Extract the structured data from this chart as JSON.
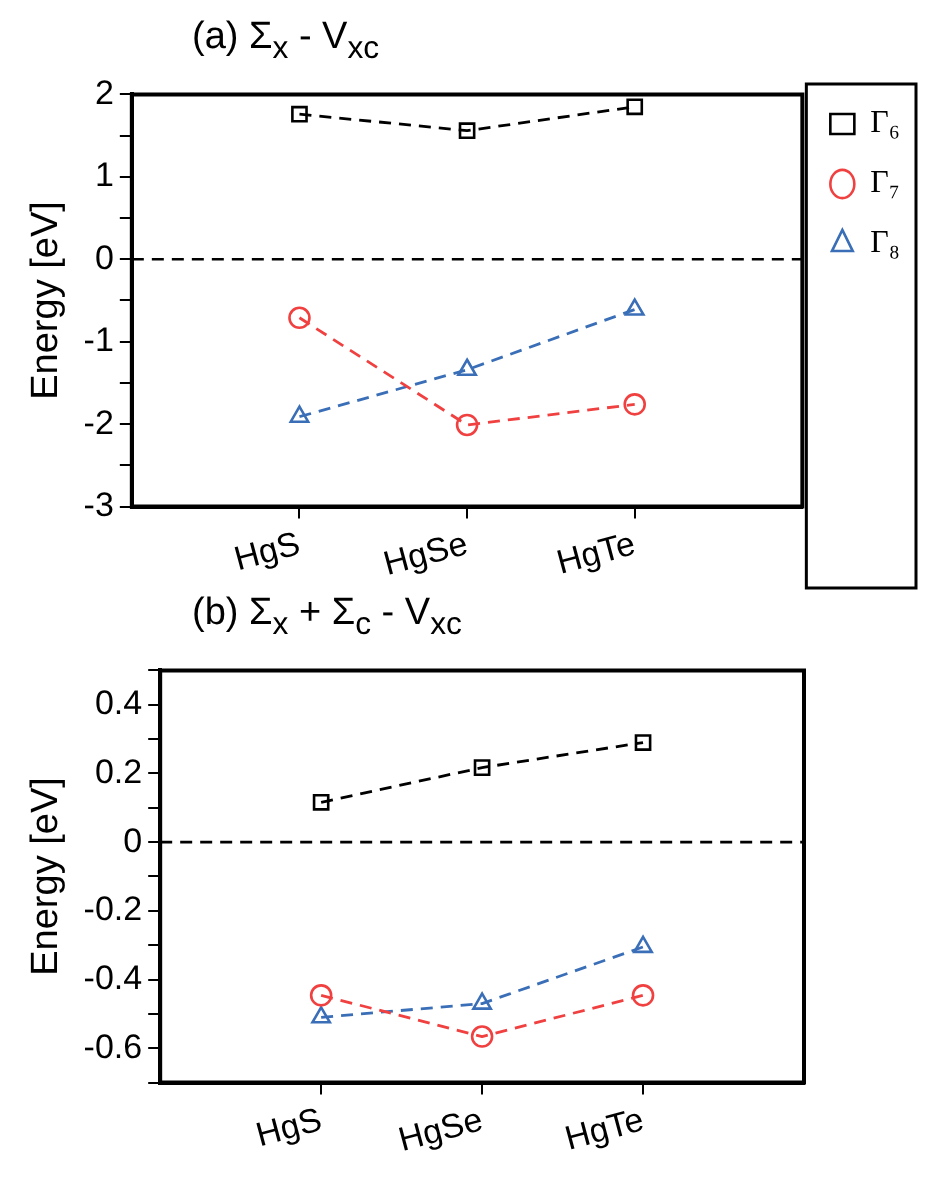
{
  "chart_data": [
    {
      "type": "line",
      "title": "(a) Σ$_{x}$ - V$_{xc}$",
      "ylabel": "Energy [eV]",
      "categories": [
        "HgS",
        "HgSe",
        "HgTe"
      ],
      "series": [
        {
          "name": "Γ₆",
          "color": "#000000",
          "marker": "square",
          "values": [
            1.76,
            1.56,
            1.85
          ]
        },
        {
          "name": "Γ₇",
          "color": "#f04040",
          "marker": "circle",
          "values": [
            -0.71,
            -2.01,
            -1.76
          ]
        },
        {
          "name": "Γ₈",
          "color": "#3a6fb8",
          "marker": "triangle",
          "values": [
            -1.91,
            -1.34,
            -0.61
          ]
        }
      ],
      "ylim": [
        -3,
        2
      ],
      "yticks": [
        -3,
        {
          "value": -2.5,
          "label": null
        },
        -2,
        {
          "value": -1.5,
          "label": null
        },
        -1,
        {
          "value": -0.5,
          "label": null
        },
        0,
        {
          "value": 0.5,
          "label": null
        },
        1,
        {
          "value": 1.5,
          "label": null
        },
        2
      ],
      "ref_lines": [
        {
          "axis": "y",
          "value": 0,
          "color": "#000000",
          "line_style": "dashed"
        }
      ],
      "line_style": "dashed",
      "grid": false,
      "legend": "top right"
    },
    {
      "type": "line",
      "title": "(b) Σ$_{x}$ + Σ$_{c}$ - V$_{xc}$",
      "ylabel": "Energy [eV]",
      "categories": [
        "HgS",
        "HgSe",
        "HgTe"
      ],
      "series": [
        {
          "color": "#000000",
          "marker": "square",
          "values": [
            0.116,
            0.217,
            0.29
          ]
        },
        {
          "color": "#f04040",
          "marker": "circle",
          "values": [
            -0.446,
            -0.566,
            -0.446
          ]
        },
        {
          "color": "#3a6fb8",
          "marker": "triangle",
          "values": [
            -0.51,
            -0.47,
            -0.305
          ]
        }
      ],
      "ylim": [
        -0.7,
        0.5
      ],
      "yticks": [
        {
          "value": -0.7,
          "label": null
        },
        -0.6,
        {
          "value": -0.5,
          "label": null
        },
        -0.4,
        {
          "value": -0.3,
          "label": null
        },
        -0.2,
        {
          "value": -0.1,
          "label": null
        },
        0,
        {
          "value": 0.1,
          "label": null
        },
        0.2,
        {
          "value": 0.3,
          "label": null
        },
        0.4,
        {
          "value": 0.5,
          "label": null
        }
      ],
      "ref_lines": [
        {
          "axis": "y",
          "value": 0,
          "color": "#000000",
          "line_style": "dashed"
        }
      ],
      "line_style": "dashed",
      "grid": false,
      "legend": false
    }
  ]
}
